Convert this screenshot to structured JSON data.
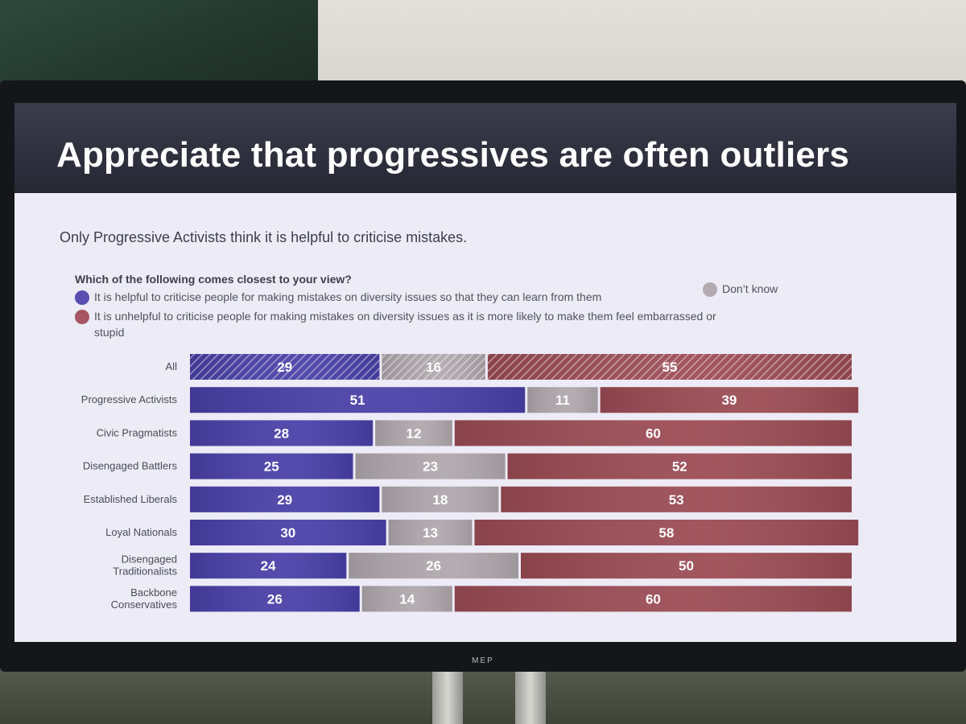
{
  "slide": {
    "title": "Appreciate that progressives are often outliers",
    "subtitle": "Only Progressive Activists think it is helpful to criticise mistakes.",
    "question": "Which of the following comes closest to your view?"
  },
  "monitor": {
    "brand": "MEP"
  },
  "colors": {
    "helpful": "#4a40a8",
    "dont_know": "#b0a8ac",
    "unhelpful": "#9c4c55"
  },
  "chart_data": {
    "type": "bar",
    "orientation": "horizontal",
    "stacked": true,
    "title": "Only Progressive Activists think it is helpful to criticise mistakes.",
    "question": "Which of the following comes closest to your view?",
    "categories": [
      "All",
      "Progressive Activists",
      "Civic Pragmatists",
      "Disengaged Battlers",
      "Established Liberals",
      "Loyal Nationals",
      "Disengaged Traditionalists",
      "Backbone Conservatives"
    ],
    "category_lines": [
      [
        "All"
      ],
      [
        "Progressive Activists"
      ],
      [
        "Civic Pragmatists"
      ],
      [
        "Disengaged Battlers"
      ],
      [
        "Established Liberals"
      ],
      [
        "Loyal Nationals"
      ],
      [
        "Disengaged",
        "Traditionalists"
      ],
      [
        "Backbone",
        "Conservatives"
      ]
    ],
    "series": [
      {
        "name": "It is helpful to criticise people for making mistakes on diversity issues so that they can learn from them",
        "key": "helpful",
        "values": [
          29,
          51,
          28,
          25,
          29,
          30,
          24,
          26
        ]
      },
      {
        "name": "Don’t know",
        "key": "dont_know",
        "values": [
          16,
          11,
          12,
          23,
          18,
          13,
          26,
          14
        ]
      },
      {
        "name": "It is unhelpful to criticise people for making mistakes on diversity issues as it is more likely to make them feel embarrassed or stupid",
        "key": "unhelpful",
        "values": [
          55,
          39,
          60,
          52,
          53,
          58,
          50,
          60
        ]
      }
    ],
    "legend_lines": {
      "unhelpful": [
        "It is unhelpful to criticise people for making mistakes on diversity issues as it is more likely to make them feel embarrassed or",
        "stupid"
      ]
    },
    "hatched_rows": [
      "All"
    ],
    "xlim": [
      0,
      100
    ],
    "unit": "%"
  }
}
